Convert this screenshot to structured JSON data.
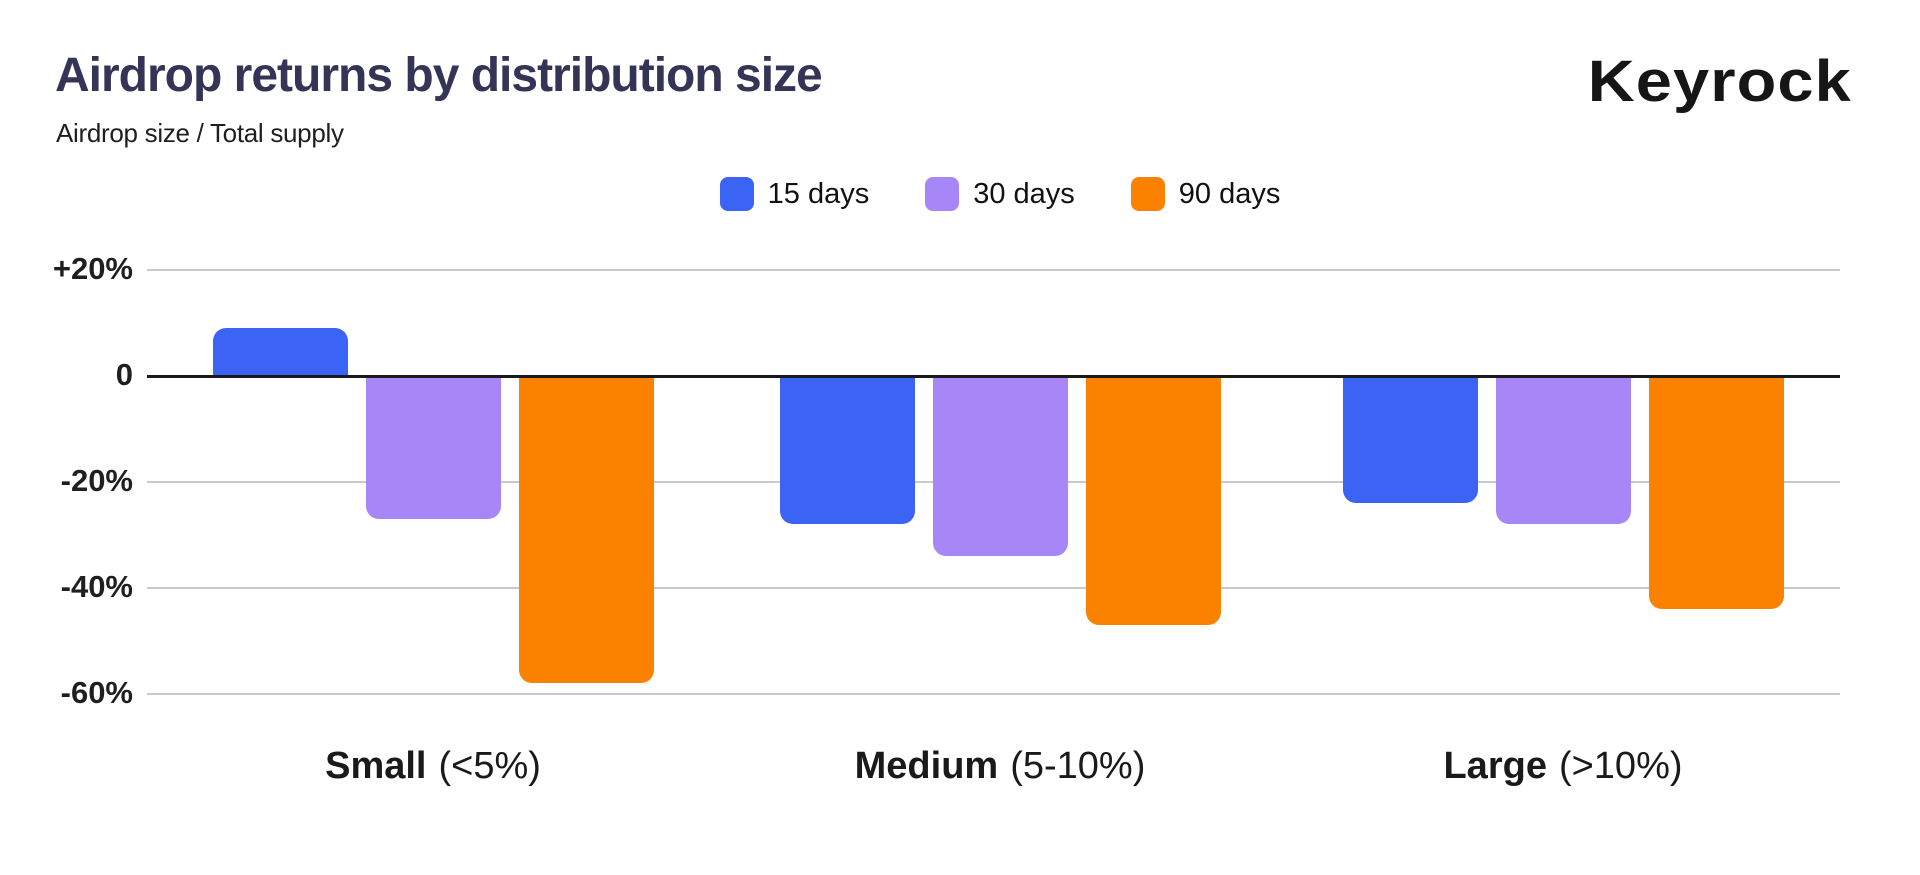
{
  "page": {
    "title": "Airdrop returns by distribution size",
    "subtitle": "Airdrop size / Total supply",
    "brand": "Keyrock"
  },
  "colors": {
    "title_text": "#343457",
    "body_text": "#1a1a1a",
    "series_blue": "#3B64F5",
    "series_purple": "#A787F8",
    "series_orange": "#FA8200",
    "gridline": "#c9c9c9",
    "zero_line": "#1a1a1a",
    "background": "#ffffff"
  },
  "legend": {
    "position": "top",
    "items": [
      {
        "label": "15 days",
        "color": "#3B64F5"
      },
      {
        "label": "30 days",
        "color": "#A787F8"
      },
      {
        "label": "90 days",
        "color": "#FA8200"
      }
    ]
  },
  "chart_data": {
    "type": "bar",
    "title": "Airdrop returns by distribution size",
    "subtitle": "Airdrop size / Total supply",
    "unit": "percent",
    "categories": [
      {
        "name": "Small",
        "qualifier": "(<5%)"
      },
      {
        "name": "Medium",
        "qualifier": "(5-10%)"
      },
      {
        "name": "Large",
        "qualifier": "(>10%)"
      }
    ],
    "series": [
      {
        "name": "15 days",
        "color": "#3B64F5",
        "values": [
          9,
          -28,
          -24
        ]
      },
      {
        "name": "30 days",
        "color": "#A787F8",
        "values": [
          -27,
          -34,
          -28
        ]
      },
      {
        "name": "90 days",
        "color": "#FA8200",
        "values": [
          -58,
          -47,
          -44
        ]
      }
    ],
    "y_axis": {
      "min": -60,
      "max": 20,
      "ticks": [
        {
          "label": "+20%",
          "value": 20
        },
        {
          "label": "0",
          "value": 0
        },
        {
          "label": "-20%",
          "value": -20
        },
        {
          "label": "-40%",
          "value": -40
        },
        {
          "label": "-60%",
          "value": -60
        }
      ]
    },
    "grid": true,
    "legend_position": "top"
  }
}
